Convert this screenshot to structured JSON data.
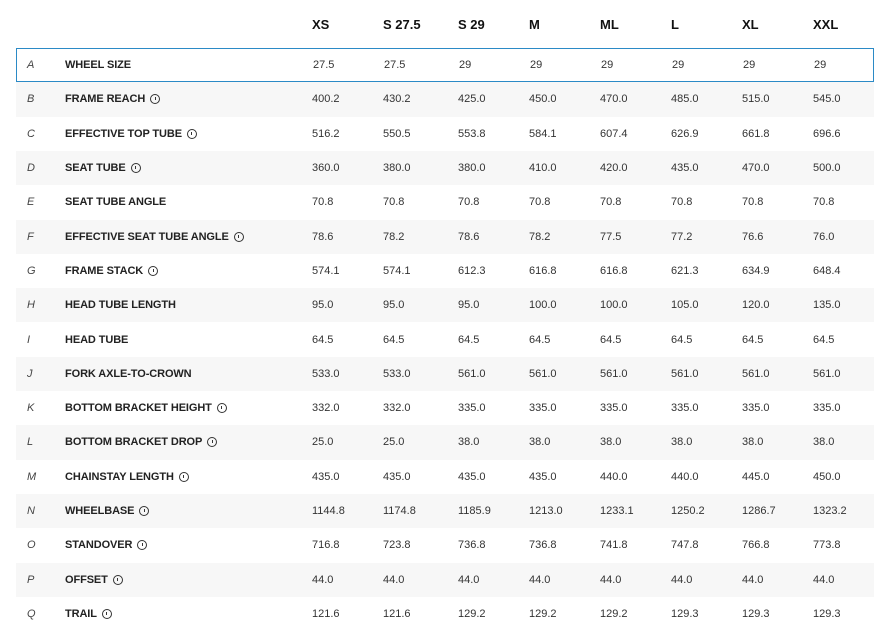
{
  "sizes": [
    "XS",
    "S 27.5",
    "S 29",
    "M",
    "ML",
    "L",
    "XL",
    "XXL"
  ],
  "rows": [
    {
      "letter": "A",
      "label": "WHEEL SIZE",
      "info": false,
      "selected": true,
      "values": [
        "27.5",
        "27.5",
        "29",
        "29",
        "29",
        "29",
        "29",
        "29"
      ]
    },
    {
      "letter": "B",
      "label": "FRAME REACH",
      "info": true,
      "values": [
        "400.2",
        "430.2",
        "425.0",
        "450.0",
        "470.0",
        "485.0",
        "515.0",
        "545.0"
      ]
    },
    {
      "letter": "C",
      "label": "EFFECTIVE TOP TUBE",
      "info": true,
      "values": [
        "516.2",
        "550.5",
        "553.8",
        "584.1",
        "607.4",
        "626.9",
        "661.8",
        "696.6"
      ]
    },
    {
      "letter": "D",
      "label": "SEAT TUBE",
      "info": true,
      "values": [
        "360.0",
        "380.0",
        "380.0",
        "410.0",
        "420.0",
        "435.0",
        "470.0",
        "500.0"
      ]
    },
    {
      "letter": "E",
      "label": "SEAT TUBE ANGLE",
      "info": false,
      "values": [
        "70.8",
        "70.8",
        "70.8",
        "70.8",
        "70.8",
        "70.8",
        "70.8",
        "70.8"
      ]
    },
    {
      "letter": "F",
      "label": "EFFECTIVE SEAT TUBE ANGLE",
      "info": true,
      "values": [
        "78.6",
        "78.2",
        "78.6",
        "78.2",
        "77.5",
        "77.2",
        "76.6",
        "76.0"
      ]
    },
    {
      "letter": "G",
      "label": "FRAME STACK",
      "info": true,
      "values": [
        "574.1",
        "574.1",
        "612.3",
        "616.8",
        "616.8",
        "621.3",
        "634.9",
        "648.4"
      ]
    },
    {
      "letter": "H",
      "label": "HEAD TUBE LENGTH",
      "info": false,
      "values": [
        "95.0",
        "95.0",
        "95.0",
        "100.0",
        "100.0",
        "105.0",
        "120.0",
        "135.0"
      ]
    },
    {
      "letter": "I",
      "label": "HEAD TUBE",
      "info": false,
      "values": [
        "64.5",
        "64.5",
        "64.5",
        "64.5",
        "64.5",
        "64.5",
        "64.5",
        "64.5"
      ]
    },
    {
      "letter": "J",
      "label": "FORK AXLE-TO-CROWN",
      "info": false,
      "values": [
        "533.0",
        "533.0",
        "561.0",
        "561.0",
        "561.0",
        "561.0",
        "561.0",
        "561.0"
      ]
    },
    {
      "letter": "K",
      "label": "BOTTOM BRACKET HEIGHT",
      "info": true,
      "values": [
        "332.0",
        "332.0",
        "335.0",
        "335.0",
        "335.0",
        "335.0",
        "335.0",
        "335.0"
      ]
    },
    {
      "letter": "L",
      "label": "BOTTOM BRACKET DROP",
      "info": true,
      "values": [
        "25.0",
        "25.0",
        "38.0",
        "38.0",
        "38.0",
        "38.0",
        "38.0",
        "38.0"
      ]
    },
    {
      "letter": "M",
      "label": "CHAINSTAY LENGTH",
      "info": true,
      "values": [
        "435.0",
        "435.0",
        "435.0",
        "435.0",
        "440.0",
        "440.0",
        "445.0",
        "450.0"
      ]
    },
    {
      "letter": "N",
      "label": "WHEELBASE",
      "info": true,
      "values": [
        "1144.8",
        "1174.8",
        "1185.9",
        "1213.0",
        "1233.1",
        "1250.2",
        "1286.7",
        "1323.2"
      ]
    },
    {
      "letter": "O",
      "label": "STANDOVER",
      "info": true,
      "values": [
        "716.8",
        "723.8",
        "736.8",
        "736.8",
        "741.8",
        "747.8",
        "766.8",
        "773.8"
      ]
    },
    {
      "letter": "P",
      "label": "OFFSET",
      "info": true,
      "values": [
        "44.0",
        "44.0",
        "44.0",
        "44.0",
        "44.0",
        "44.0",
        "44.0",
        "44.0"
      ]
    },
    {
      "letter": "Q",
      "label": "TRAIL",
      "info": true,
      "values": [
        "121.6",
        "121.6",
        "129.2",
        "129.2",
        "129.2",
        "129.3",
        "129.3",
        "129.3"
      ]
    }
  ]
}
